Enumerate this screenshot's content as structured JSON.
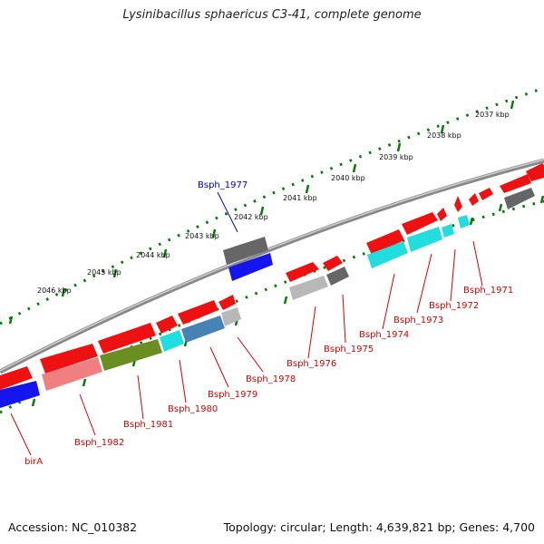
{
  "title": "Lysinibacillus sphaericus C3-41, complete genome",
  "footer": {
    "accession": "Accession: NC_010382",
    "summary": "Topology: circular; Length: 4,639,821 bp; Genes: 4,700"
  },
  "scale_ticks": [
    {
      "label": "2037 kbp",
      "pos_kbp": 2037
    },
    {
      "label": "2038 kbp",
      "pos_kbp": 2038
    },
    {
      "label": "2039 kbp",
      "pos_kbp": 2039
    },
    {
      "label": "2040 kbp",
      "pos_kbp": 2040
    },
    {
      "label": "2041 kbp",
      "pos_kbp": 2041
    },
    {
      "label": "2042 kbp",
      "pos_kbp": 2042
    },
    {
      "label": "2043 kbp",
      "pos_kbp": 2043
    },
    {
      "label": "2044 kbp",
      "pos_kbp": 2044
    },
    {
      "label": "2045 kbp",
      "pos_kbp": 2045
    },
    {
      "label": "2046 kbp",
      "pos_kbp": 2046
    }
  ],
  "gene_labels": [
    {
      "id": "Bsph_1977",
      "text": "Bsph_1977",
      "color": "#0000cc"
    },
    {
      "id": "Bsph_1971",
      "text": "Bsph_1971",
      "color": "#dd0000"
    },
    {
      "id": "Bsph_1972",
      "text": "Bsph_1972",
      "color": "#dd0000"
    },
    {
      "id": "Bsph_1973",
      "text": "Bsph_1973",
      "color": "#dd0000"
    },
    {
      "id": "Bsph_1974",
      "text": "Bsph_1974",
      "color": "#dd0000"
    },
    {
      "id": "Bsph_1975",
      "text": "Bsph_1975",
      "color": "#dd0000"
    },
    {
      "id": "Bsph_1976",
      "text": "Bsph_1976",
      "color": "#dd0000"
    },
    {
      "id": "Bsph_1978",
      "text": "Bsph_1978",
      "color": "#dd0000"
    },
    {
      "id": "Bsph_1979",
      "text": "Bsph_1979",
      "color": "#dd0000"
    },
    {
      "id": "Bsph_1980",
      "text": "Bsph_1980",
      "color": "#dd0000"
    },
    {
      "id": "Bsph_1981",
      "text": "Bsph_1981",
      "color": "#dd0000"
    },
    {
      "id": "Bsph_1982",
      "text": "Bsph_1982",
      "color": "#dd0000"
    },
    {
      "id": "birA",
      "text": "birA",
      "color": "#dd0000"
    }
  ],
  "colors": {
    "cds_forward": "#ee1111",
    "cds_reverse": "#ee1111",
    "cog_gray": "#666666",
    "cog_lightgray": "#b8b8b8",
    "cog_cyan": "#22dddd",
    "cog_blue": "#1515ee",
    "cog_olive": "#6b8e23",
    "cog_pink": "#f08080",
    "cog_steelblue": "#4682b4",
    "backbone": "#888888",
    "tick_green": "#0a7a0a"
  }
}
